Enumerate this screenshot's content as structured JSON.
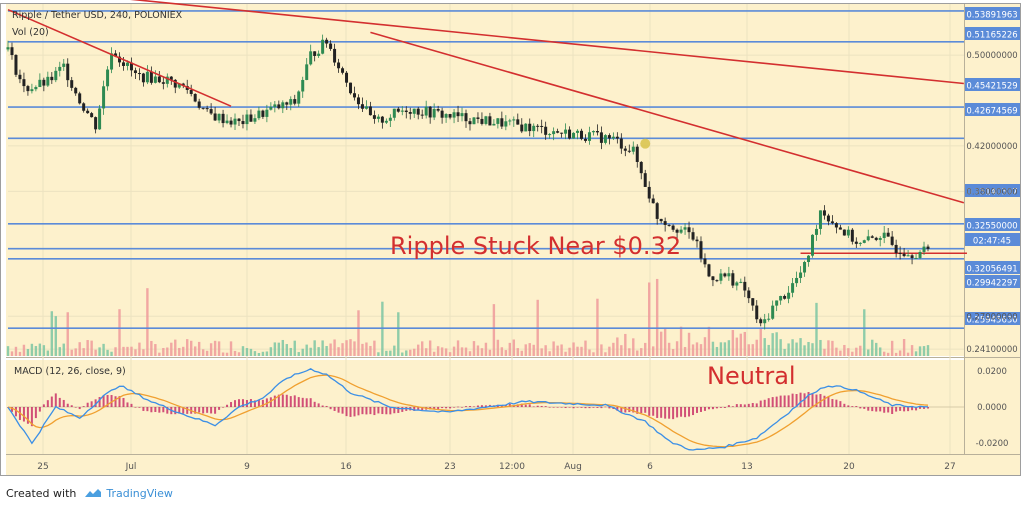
{
  "header": {
    "symbol_line": "Ripple / Tether USD, 240, POLONIEX",
    "vol_line": "Vol (20)"
  },
  "footer": {
    "prefix": "Created with",
    "brand": "TradingView"
  },
  "colors": {
    "background": "#fdf1cc",
    "grid": "#ece2c0",
    "hline": "#5b8bd8",
    "trendline": "#d32f2f",
    "candle_up": "#2e8a52",
    "candle_down": "#222222",
    "vol_up": "#7bc5a2",
    "vol_down": "#ef9a9a",
    "macd_line": "#3b8fe6",
    "signal_line": "#f0a030",
    "hist_pos": "#c2185b",
    "annotation": "#d32f2f",
    "highlight_marker": "#d8c24a"
  },
  "price_axis": {
    "ticks": [
      "0.50000000",
      "0.42000000",
      "0.38000000",
      "0.27000000",
      "0.24100000"
    ],
    "labels": [
      "0.53891963",
      "0.51165226",
      "0.45421529",
      "0.42674569",
      "0.35140307",
      "0.32550000",
      "02:47:45",
      "0.32056491",
      "0.29942297",
      "0.25945630"
    ]
  },
  "macd_axis": {
    "label": "MACD (12, 26, close, 9)",
    "ticks": [
      "0.0200",
      "0.0000",
      "-0.0200"
    ]
  },
  "time_axis": {
    "labels": [
      "25",
      "Jul",
      "9",
      "16",
      "23",
      "12:00",
      "Aug",
      "6",
      "13",
      "20",
      "27"
    ]
  },
  "annotations": {
    "headline": "Ripple Stuck Near $0.32",
    "macd_note": "Neutral"
  },
  "chart_data": {
    "type": "candlestick",
    "title": "Ripple / Tether USD, 240, POLONIEX",
    "price_range": [
      0.235,
      0.545
    ],
    "macd_range": [
      -0.026,
      0.026
    ],
    "price_path": [
      [
        0,
        0.505
      ],
      [
        4,
        0.47
      ],
      [
        10,
        0.476
      ],
      [
        14,
        0.49
      ],
      [
        18,
        0.46
      ],
      [
        22,
        0.438
      ],
      [
        26,
        0.505
      ],
      [
        32,
        0.482
      ],
      [
        40,
        0.478
      ],
      [
        45,
        0.47
      ],
      [
        50,
        0.448
      ],
      [
        58,
        0.44
      ],
      [
        66,
        0.452
      ],
      [
        72,
        0.458
      ],
      [
        76,
        0.5
      ],
      [
        80,
        0.512
      ],
      [
        86,
        0.47
      ],
      [
        92,
        0.44
      ],
      [
        100,
        0.453
      ],
      [
        110,
        0.447
      ],
      [
        120,
        0.442
      ],
      [
        130,
        0.437
      ],
      [
        138,
        0.432
      ],
      [
        146,
        0.429
      ],
      [
        152,
        0.426
      ],
      [
        157,
        0.415
      ],
      [
        163,
        0.358
      ],
      [
        168,
        0.348
      ],
      [
        172,
        0.34
      ],
      [
        176,
        0.305
      ],
      [
        181,
        0.305
      ],
      [
        185,
        0.293
      ],
      [
        189,
        0.26
      ],
      [
        192,
        0.278
      ],
      [
        196,
        0.293
      ],
      [
        200,
        0.313
      ],
      [
        204,
        0.364
      ],
      [
        209,
        0.347
      ],
      [
        214,
        0.333
      ],
      [
        219,
        0.342
      ],
      [
        223,
        0.33
      ],
      [
        227,
        0.326
      ],
      [
        230,
        0.327
      ]
    ],
    "macd_path": [
      [
        0,
        0.0
      ],
      [
        6,
        -0.02
      ],
      [
        12,
        0.0
      ],
      [
        18,
        -0.006
      ],
      [
        24,
        0.006
      ],
      [
        28,
        0.012
      ],
      [
        36,
        0.003
      ],
      [
        44,
        -0.004
      ],
      [
        52,
        -0.01
      ],
      [
        58,
        0.0
      ],
      [
        64,
        0.005
      ],
      [
        70,
        0.016
      ],
      [
        76,
        0.021
      ],
      [
        80,
        0.018
      ],
      [
        86,
        0.008
      ],
      [
        96,
        0.0
      ],
      [
        110,
        -0.003
      ],
      [
        130,
        0.003
      ],
      [
        150,
        0.001
      ],
      [
        160,
        -0.008
      ],
      [
        166,
        -0.019
      ],
      [
        172,
        -0.024
      ],
      [
        180,
        -0.022
      ],
      [
        188,
        -0.017
      ],
      [
        196,
        -0.003
      ],
      [
        202,
        0.008
      ],
      [
        206,
        0.012
      ],
      [
        212,
        0.01
      ],
      [
        222,
        0.001
      ],
      [
        230,
        0.0
      ]
    ],
    "horizontal_levels": [
      0.5389,
      0.5117,
      0.4542,
      0.4267,
      0.3514,
      0.3295,
      0.3206,
      0.2595
    ],
    "support_segment": {
      "from": 199,
      "to": 232,
      "price": 0.3255
    },
    "trendlines": [
      {
        "from": [
          0,
          0.54
        ],
        "to": [
          56,
          0.455
        ]
      },
      {
        "from": [
          20,
          0.553
        ],
        "to": [
          240,
          0.475
        ]
      },
      {
        "from": [
          91,
          0.52
        ],
        "to": [
          240,
          0.37
        ]
      }
    ],
    "marker_point": [
      160,
      0.422
    ],
    "candle_count": 232
  }
}
